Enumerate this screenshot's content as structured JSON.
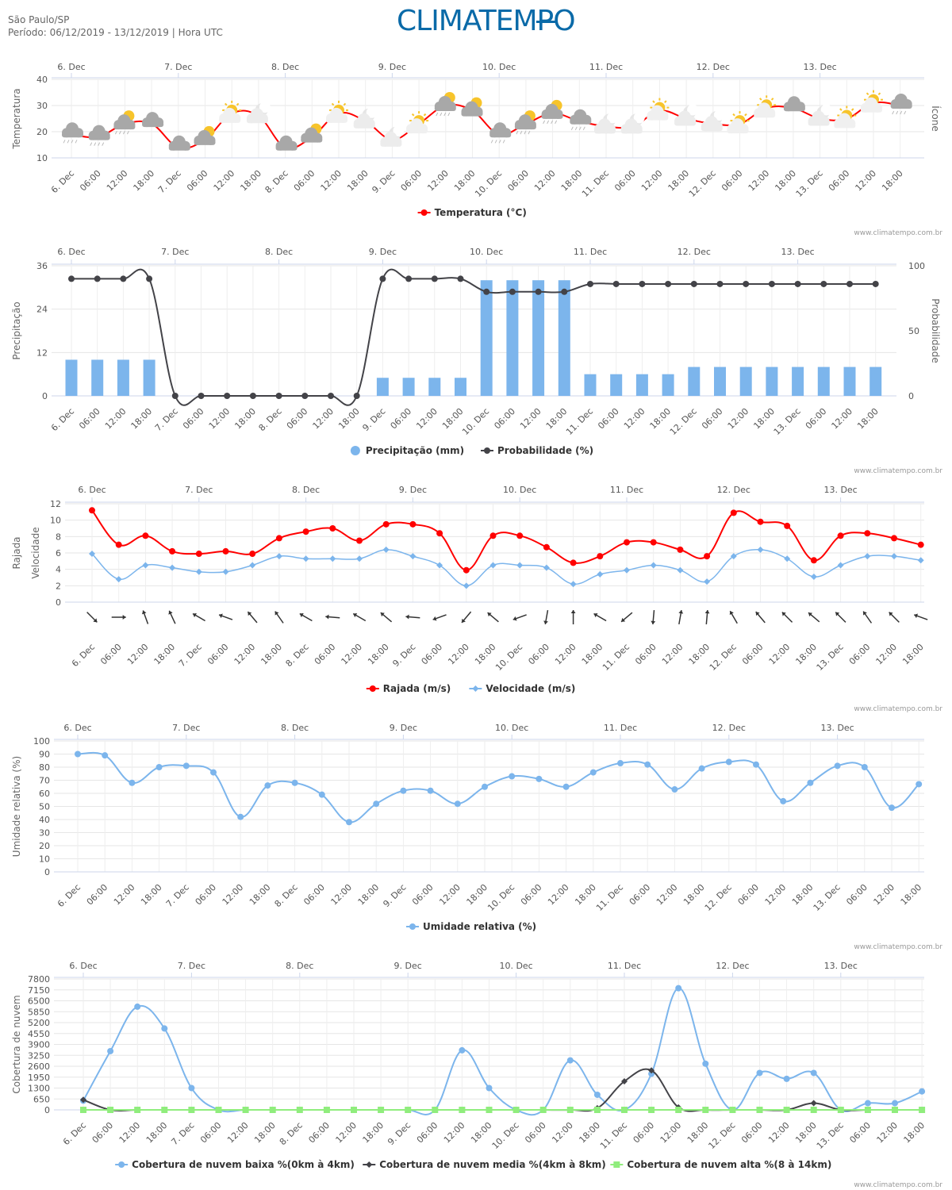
{
  "header": {
    "location": "São Paulo/SP",
    "period": "Período: 06/12/2019 - 13/12/2019 | Hora UTC",
    "logo": "CLIMATEMPO"
  },
  "credit": "www.climatempo.com.br",
  "x_labels": [
    "6. Dec",
    "06:00",
    "12:00",
    "18:00",
    "7. Dec",
    "06:00",
    "12:00",
    "18:00",
    "8. Dec",
    "06:00",
    "12:00",
    "18:00",
    "9. Dec",
    "06:00",
    "12:00",
    "18:00",
    "10. Dec",
    "06:00",
    "12:00",
    "18:00",
    "11. Dec",
    "06:00",
    "12:00",
    "18:00",
    "12. Dec",
    "06:00",
    "12:00",
    "18:00",
    "13. Dec",
    "06:00",
    "12:00",
    "18:00"
  ],
  "day_labels": [
    "6. Dec",
    "7. Dec",
    "8. Dec",
    "9. Dec",
    "10. Dec",
    "11. Dec",
    "12. Dec",
    "13. Dec"
  ],
  "colors": {
    "red": "#ff0000",
    "blue": "#7cb5ec",
    "dark": "#434348",
    "green": "#90ed7d",
    "sun": "#f7c42b",
    "cloud": "#a8a8a8"
  },
  "chart_data": [
    {
      "type": "line",
      "ylabel": "Temperatura",
      "ylabel_right": "Ícone",
      "ylim": [
        10,
        40
      ],
      "yticks": [
        "10",
        "20",
        "30",
        "40"
      ],
      "series": [
        {
          "name": "Temperatura (°C)",
          "values": [
            19,
            18,
            23,
            23,
            14,
            17,
            27,
            26,
            14,
            18,
            27,
            24,
            17,
            23,
            30,
            28,
            19,
            23,
            27,
            24,
            22,
            22,
            28,
            25,
            23,
            23,
            29,
            29,
            25,
            25,
            31,
            30
          ]
        }
      ],
      "icons": [
        "cloud-rain",
        "cloud-rain",
        "sun-cloud-rain",
        "cloud",
        "cloud",
        "sun-cloud",
        "sun",
        "moon",
        "cloud",
        "sun-cloud",
        "sun",
        "moon",
        "moon",
        "sun",
        "sun-cloud-rain",
        "sun-cloud",
        "cloud-rain",
        "sun-cloud-rain",
        "sun-cloud-rain",
        "cloud-rain",
        "moon",
        "moon",
        "sun",
        "moon",
        "moon",
        "sun",
        "sun",
        "cloud",
        "moon",
        "sun",
        "sun",
        "cloud-rain"
      ]
    },
    {
      "type": "bar",
      "ylabel": "Precipitação",
      "ylabel_right": "Probabilidade",
      "ylim": [
        0,
        36
      ],
      "yticks": [
        "0",
        "12",
        "24",
        "36"
      ],
      "yticks_right": [
        "0",
        "50",
        "100"
      ],
      "ylim_right": [
        0,
        100
      ],
      "series": [
        {
          "name": "Precipitação (mm)",
          "values": [
            10,
            10,
            10,
            10,
            0,
            0,
            0,
            0,
            0,
            0,
            0,
            0,
            5,
            5,
            5,
            5,
            32,
            32,
            32,
            32,
            6,
            6,
            6,
            6,
            8,
            8,
            8,
            8,
            8,
            8,
            8,
            8
          ]
        },
        {
          "name": "Probabilidade (%)",
          "values": [
            90,
            90,
            90,
            90,
            0,
            0,
            0,
            0,
            0,
            0,
            0,
            0,
            90,
            90,
            90,
            90,
            80,
            80,
            80,
            80,
            86,
            86,
            86,
            86,
            86,
            86,
            86,
            86,
            86,
            86,
            86,
            86
          ]
        }
      ]
    },
    {
      "type": "line",
      "ylabel": "Rajada",
      "ylabel2": "Velocidade",
      "ylim": [
        0,
        12
      ],
      "yticks": [
        "0",
        "2",
        "4",
        "6",
        "8",
        "10",
        "12"
      ],
      "series": [
        {
          "name": "Rajada (m/s)",
          "values": [
            11.2,
            7,
            8.1,
            6.2,
            5.9,
            6.2,
            5.9,
            7.8,
            8.6,
            9,
            7.5,
            9.5,
            9.5,
            8.4,
            3.9,
            8.1,
            8.1,
            6.7,
            4.8,
            5.6,
            7.3,
            7.3,
            6.4,
            5.6,
            10.9,
            9.8,
            9.3,
            5.1,
            8.1,
            8.4,
            7.8,
            7
          ]
        },
        {
          "name": "Velocidade (m/s)",
          "values": [
            5.9,
            2.8,
            4.5,
            4.2,
            3.7,
            3.7,
            4.5,
            5.6,
            5.3,
            5.3,
            5.3,
            6.4,
            5.6,
            4.5,
            2,
            4.5,
            4.5,
            4.2,
            2.2,
            3.4,
            3.9,
            4.5,
            3.9,
            2.5,
            5.6,
            6.4,
            5.3,
            3.1,
            4.5,
            5.6,
            5.6,
            5.1
          ]
        }
      ],
      "wind_directions_deg": [
        135,
        90,
        340,
        335,
        300,
        290,
        320,
        325,
        300,
        275,
        300,
        310,
        275,
        250,
        220,
        310,
        250,
        190,
        0,
        300,
        230,
        185,
        10,
        5,
        330,
        320,
        315,
        310,
        315,
        325,
        315,
        290
      ]
    },
    {
      "type": "line",
      "ylabel": "Umidade relativa (%)",
      "ylim": [
        0,
        100
      ],
      "yticks": [
        "0",
        "10",
        "20",
        "30",
        "40",
        "50",
        "60",
        "70",
        "80",
        "90",
        "100"
      ],
      "series": [
        {
          "name": "Umidade relativa (%)",
          "values": [
            90,
            89,
            68,
            80,
            81,
            76,
            42,
            66,
            68,
            59,
            38,
            52,
            62,
            62,
            52,
            65,
            73,
            71,
            65,
            76,
            83,
            82,
            63,
            79,
            84,
            82,
            54,
            68,
            81,
            80,
            49,
            67
          ]
        }
      ]
    },
    {
      "type": "line",
      "ylabel": "Cobertura de nuvem",
      "ylim": [
        0,
        7800
      ],
      "yticks": [
        "0",
        "650",
        "1300",
        "1950",
        "2600",
        "3250",
        "3900",
        "4550",
        "5200",
        "5850",
        "6500",
        "7150",
        "7800"
      ],
      "series": [
        {
          "name": "Cobertura de nuvem baixa %(0km à 4km)",
          "values": [
            550,
            3500,
            6150,
            4850,
            1300,
            0,
            0,
            0,
            0,
            0,
            0,
            0,
            0,
            0,
            3550,
            1300,
            0,
            0,
            2950,
            900,
            0,
            2150,
            7250,
            2750,
            0,
            2200,
            1850,
            2200,
            0,
            400,
            400,
            1100
          ]
        },
        {
          "name": "Cobertura de nuvem media %(4km à 8km)",
          "values": [
            600,
            0,
            0,
            0,
            0,
            0,
            0,
            0,
            0,
            0,
            0,
            0,
            0,
            0,
            0,
            0,
            0,
            0,
            0,
            100,
            1700,
            2350,
            150,
            0,
            0,
            0,
            0,
            400,
            0,
            0,
            0,
            0
          ]
        },
        {
          "name": "Cobertura de nuvem alta %(8 à 14km)",
          "values": [
            0,
            0,
            0,
            0,
            0,
            0,
            0,
            0,
            0,
            0,
            0,
            0,
            0,
            0,
            0,
            0,
            0,
            0,
            0,
            0,
            0,
            0,
            0,
            0,
            0,
            0,
            0,
            0,
            0,
            0,
            0,
            0
          ]
        }
      ]
    }
  ]
}
